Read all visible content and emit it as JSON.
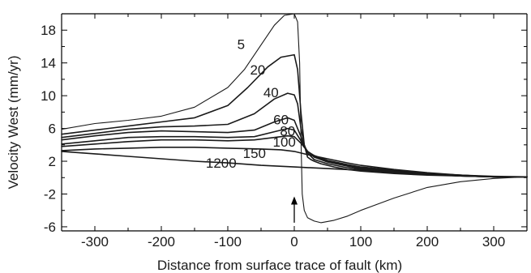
{
  "chart_data": {
    "type": "line",
    "title": "",
    "xlabel": "Distance from surface trace of fault (km)",
    "ylabel": "Velocity West  (mm/yr)",
    "xlim": [
      -350,
      350
    ],
    "ylim": [
      -6.5,
      20
    ],
    "grid": false,
    "x_ticks": [
      -300,
      -200,
      -100,
      0,
      100,
      200,
      300
    ],
    "x_tick_labels": [
      "-300",
      "-200",
      "-100",
      "0",
      "100",
      "200",
      "300"
    ],
    "y_ticks": [
      -6,
      -2,
      2,
      6,
      10,
      14,
      18
    ],
    "y_tick_labels": [
      "-6",
      "-2",
      "2",
      "6",
      "10",
      "14",
      "18"
    ],
    "annotation": {
      "type": "arrow",
      "x": 0,
      "y_from": -5.5,
      "y_to": -2.3
    },
    "series": [
      {
        "name": "5",
        "label_at": [
          -80,
          15.7
        ],
        "x": [
          -350,
          -300,
          -250,
          -200,
          -150,
          -100,
          -75,
          -50,
          -30,
          -15,
          0,
          5,
          8,
          10,
          12,
          15,
          20,
          30,
          40,
          60,
          80,
          100,
          150,
          200,
          250,
          300,
          350
        ],
        "y": [
          5.9,
          6.6,
          7.0,
          7.5,
          8.6,
          11.0,
          13.2,
          16.2,
          18.6,
          19.8,
          20.0,
          19.0,
          14.0,
          5.0,
          -2.0,
          -4.0,
          -4.9,
          -5.3,
          -5.5,
          -5.2,
          -4.7,
          -4.0,
          -2.5,
          -1.2,
          -0.5,
          -0.1,
          0.1
        ]
      },
      {
        "name": "20",
        "label_at": [
          -55,
          12.6
        ],
        "x": [
          -350,
          -300,
          -250,
          -200,
          -150,
          -100,
          -70,
          -40,
          -20,
          0,
          5,
          10,
          15,
          20,
          25,
          30,
          40,
          60,
          80,
          100,
          150,
          200,
          250,
          300,
          350
        ],
        "y": [
          5.3,
          5.8,
          6.3,
          6.8,
          7.3,
          8.8,
          11.0,
          13.5,
          14.7,
          15.0,
          13.2,
          8.0,
          4.0,
          2.5,
          2.2,
          2.0,
          1.7,
          1.3,
          1.0,
          0.8,
          0.5,
          0.3,
          0.2,
          0.1,
          0.1
        ]
      },
      {
        "name": "40",
        "label_at": [
          -35,
          9.8
        ],
        "x": [
          -350,
          -300,
          -250,
          -200,
          -150,
          -100,
          -60,
          -30,
          -10,
          0,
          5,
          10,
          15,
          20,
          30,
          50,
          80,
          100,
          150,
          200,
          250,
          300,
          350
        ],
        "y": [
          4.9,
          5.4,
          5.9,
          6.2,
          6.3,
          6.5,
          7.8,
          9.6,
          10.3,
          10.1,
          9.0,
          6.0,
          4.0,
          3.0,
          2.2,
          1.7,
          1.2,
          1.0,
          0.6,
          0.4,
          0.2,
          0.1,
          0.1
        ]
      },
      {
        "name": "60",
        "label_at": [
          -20,
          6.5
        ],
        "x": [
          -350,
          -300,
          -250,
          -200,
          -150,
          -100,
          -60,
          -30,
          -10,
          0,
          10,
          15,
          20,
          30,
          50,
          80,
          100,
          150,
          200,
          250,
          300,
          350
        ],
        "y": [
          4.6,
          5.1,
          5.5,
          5.7,
          5.6,
          5.5,
          5.8,
          6.8,
          7.3,
          7.0,
          5.0,
          3.8,
          3.2,
          2.5,
          1.9,
          1.4,
          1.1,
          0.7,
          0.4,
          0.2,
          0.1,
          0.1
        ]
      },
      {
        "name": "80",
        "label_at": [
          -10,
          5.1
        ],
        "x": [
          -350,
          -300,
          -250,
          -200,
          -150,
          -100,
          -60,
          -30,
          -10,
          0,
          10,
          20,
          30,
          50,
          80,
          100,
          150,
          200,
          250,
          300,
          350
        ],
        "y": [
          4.1,
          4.5,
          4.9,
          5.0,
          5.0,
          4.9,
          5.0,
          5.6,
          6.0,
          5.8,
          4.5,
          3.2,
          2.6,
          2.0,
          1.5,
          1.2,
          0.8,
          0.5,
          0.2,
          0.1,
          0.1
        ]
      },
      {
        "name": "100",
        "label_at": [
          -15,
          3.8
        ],
        "x": [
          -350,
          -300,
          -250,
          -200,
          -150,
          -100,
          -60,
          -30,
          -10,
          0,
          10,
          20,
          30,
          50,
          80,
          100,
          150,
          200,
          250,
          300,
          350
        ],
        "y": [
          3.8,
          4.1,
          4.4,
          4.6,
          4.6,
          4.5,
          4.6,
          4.9,
          5.1,
          5.0,
          4.2,
          3.2,
          2.7,
          2.1,
          1.6,
          1.3,
          0.9,
          0.5,
          0.3,
          0.1,
          0.1
        ]
      },
      {
        "name": "150",
        "label_at": [
          -60,
          2.4
        ],
        "x": [
          -350,
          -300,
          -250,
          -200,
          -150,
          -100,
          -50,
          -20,
          0,
          20,
          50,
          80,
          100,
          150,
          200,
          250,
          300,
          350
        ],
        "y": [
          3.3,
          3.5,
          3.6,
          3.7,
          3.7,
          3.6,
          3.5,
          3.4,
          3.2,
          2.8,
          2.3,
          1.8,
          1.5,
          1.0,
          0.6,
          0.3,
          0.1,
          0.1
        ]
      },
      {
        "name": "1200",
        "label_at": [
          -110,
          1.2
        ],
        "x": [
          -350,
          -300,
          -250,
          -200,
          -150,
          -100,
          -50,
          0,
          50,
          100,
          150,
          200,
          250,
          300,
          350
        ],
        "y": [
          3.2,
          2.9,
          2.6,
          2.3,
          2.0,
          1.8,
          1.5,
          1.3,
          1.1,
          0.9,
          0.7,
          0.5,
          0.3,
          0.15,
          0.1
        ]
      }
    ]
  }
}
